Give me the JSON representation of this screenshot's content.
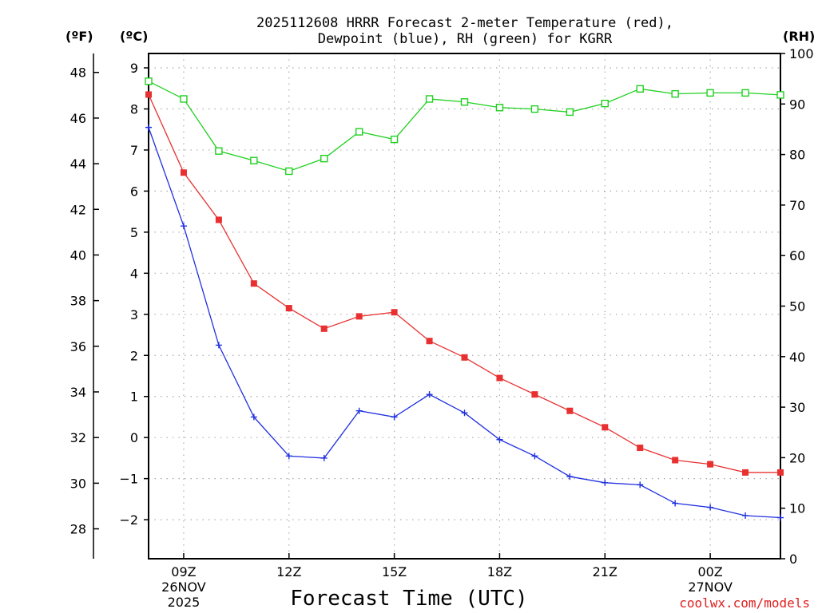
{
  "chart_data": {
    "type": "line",
    "title_line1": "2025112608 HRRR Forecast 2-meter Temperature (red),",
    "title_line2": "Dewpoint (blue), RH (green) for KGRR",
    "xlabel": "Forecast Time (UTC)",
    "credit": "coolwx.com/models",
    "unit_f": "(ºF)",
    "unit_c": "(ºC)",
    "unit_rh": "(RH)",
    "x_hours": [
      0,
      1,
      2,
      3,
      4,
      5,
      6,
      7,
      8,
      9,
      10,
      11,
      12,
      13,
      14,
      15,
      16,
      17,
      18
    ],
    "x_ticks": [
      {
        "hour": 1,
        "line1": "09Z",
        "line2": "26NOV",
        "line3": "2025"
      },
      {
        "hour": 4,
        "line1": "12Z",
        "line2": "",
        "line3": ""
      },
      {
        "hour": 7,
        "line1": "15Z",
        "line2": "",
        "line3": ""
      },
      {
        "hour": 10,
        "line1": "18Z",
        "line2": "",
        "line3": ""
      },
      {
        "hour": 13,
        "line1": "21Z",
        "line2": "",
        "line3": ""
      },
      {
        "hour": 16,
        "line1": "00Z",
        "line2": "27NOV",
        "line3": ""
      }
    ],
    "c_range": [
      -2.95,
      9.35
    ],
    "c_ticks": [
      "9",
      "8",
      "7",
      "6",
      "5",
      "4",
      "3",
      "2",
      "1",
      "0",
      "−1",
      "−2"
    ],
    "f_ticks": [
      "48",
      "46",
      "44",
      "42",
      "40",
      "38",
      "36",
      "34",
      "32",
      "30",
      "28"
    ],
    "rh_range": [
      0,
      100
    ],
    "rh_ticks": [
      "100",
      "90",
      "80",
      "70",
      "60",
      "50",
      "40",
      "30",
      "20",
      "10",
      "0"
    ],
    "series": [
      {
        "name": "Temperature",
        "color": "#e83030",
        "marker": "filled-square",
        "values": [
          8.35,
          6.45,
          5.3,
          3.75,
          3.15,
          2.65,
          2.95,
          3.05,
          2.35,
          1.95,
          1.45,
          1.05,
          0.65,
          0.25,
          -0.25,
          -0.55,
          -0.65,
          -0.85,
          -0.85
        ]
      },
      {
        "name": "Dewpoint",
        "color": "#2030e0",
        "marker": "plus",
        "values": [
          7.55,
          5.15,
          2.25,
          0.5,
          -0.45,
          -0.5,
          0.65,
          0.5,
          1.05,
          0.6,
          -0.05,
          -0.45,
          -0.95,
          -1.1,
          -1.15,
          -1.6,
          -1.7,
          -1.9,
          -1.95
        ]
      },
      {
        "name": "RH",
        "color": "#20d020",
        "marker": "open-square",
        "axis": "right",
        "values": [
          94.5,
          91,
          80.7,
          78.8,
          76.7,
          79.2,
          84.5,
          83,
          91,
          90.4,
          89.3,
          89,
          88.4,
          90.1,
          93,
          92,
          92.2,
          92.2,
          91.8
        ]
      }
    ]
  }
}
